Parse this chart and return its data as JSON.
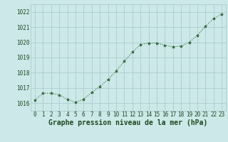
{
  "x": [
    0,
    1,
    2,
    3,
    4,
    5,
    6,
    7,
    8,
    9,
    10,
    11,
    12,
    13,
    14,
    15,
    16,
    17,
    18,
    19,
    20,
    21,
    22,
    23
  ],
  "y": [
    1016.2,
    1016.65,
    1016.65,
    1016.55,
    1016.25,
    1016.05,
    1016.25,
    1016.7,
    1017.1,
    1017.55,
    1018.1,
    1018.75,
    1019.35,
    1019.85,
    1019.95,
    1019.95,
    1019.8,
    1019.7,
    1019.75,
    1020.0,
    1020.45,
    1021.05,
    1021.55,
    1021.85
  ],
  "line_color": "#2d6a2d",
  "marker": "*",
  "marker_color": "#2d6a2d",
  "bg_color": "#cce8e8",
  "grid_color": "#aacece",
  "xlabel": "Graphe pression niveau de la mer (hPa)",
  "xlabel_color": "#1a4a1a",
  "ylabel_color": "#1a4a1a",
  "ylim": [
    1015.5,
    1022.5
  ],
  "yticks": [
    1016,
    1017,
    1018,
    1019,
    1020,
    1021,
    1022
  ],
  "xticks": [
    0,
    1,
    2,
    3,
    4,
    5,
    6,
    7,
    8,
    9,
    10,
    11,
    12,
    13,
    14,
    15,
    16,
    17,
    18,
    19,
    20,
    21,
    22,
    23
  ],
  "tick_fontsize": 5.5,
  "label_fontsize": 7.0
}
